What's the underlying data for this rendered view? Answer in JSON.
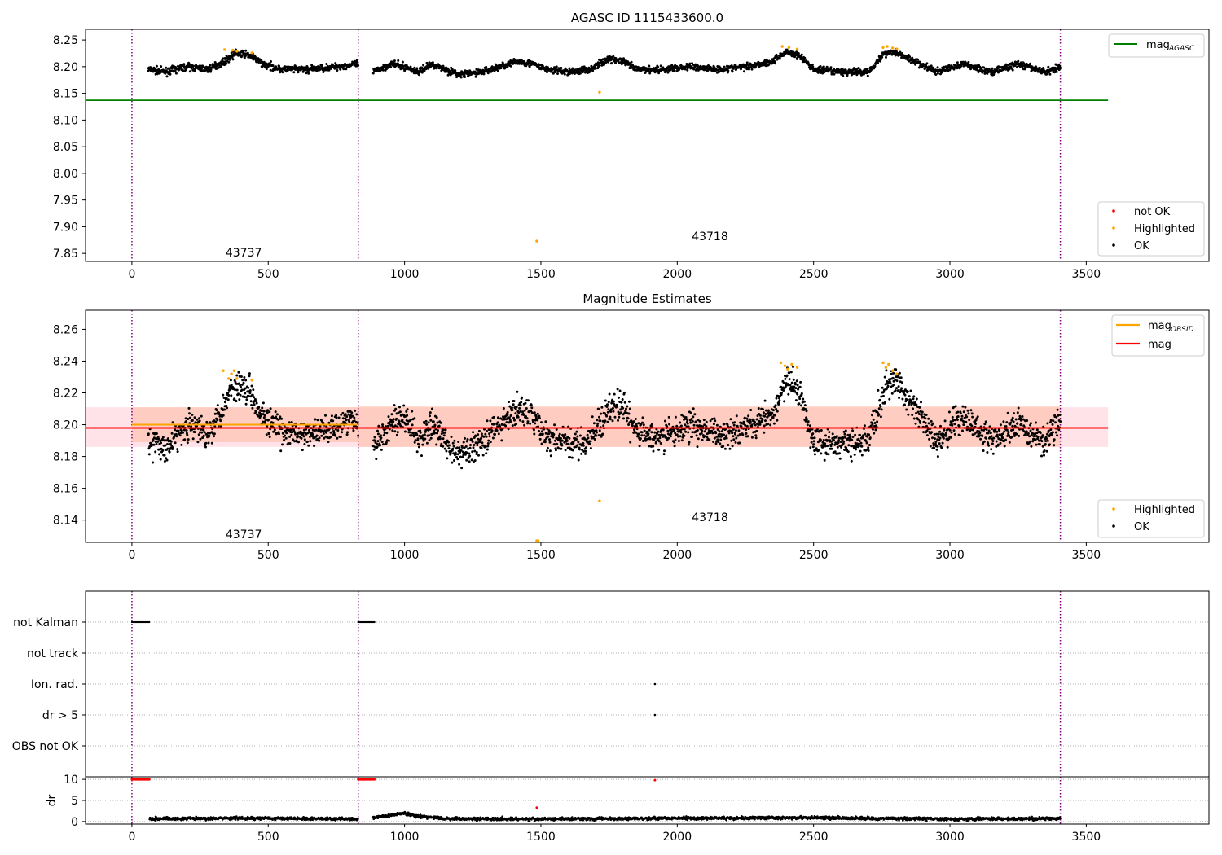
{
  "chart_data": [
    {
      "type": "scatter",
      "title": "AGASC ID 1115433600.0",
      "xlabel": "",
      "ylabel": "",
      "xlim": [
        -170,
        3950
      ],
      "ylim": [
        7.835,
        8.27
      ],
      "xticks": [
        0,
        500,
        1000,
        1500,
        2000,
        2500,
        3000,
        3500
      ],
      "xtick_labels": [
        "0",
        "500",
        "1000",
        "1500",
        "2000",
        "2500",
        "3000",
        "3500"
      ],
      "yticks": [
        7.85,
        7.9,
        7.95,
        8.0,
        8.05,
        8.1,
        8.15,
        8.2,
        8.25
      ],
      "ytick_labels": [
        "7.85",
        "7.90",
        "7.95",
        "8.00",
        "8.05",
        "8.10",
        "8.15",
        "8.20",
        "8.25"
      ],
      "grid": false,
      "observation_boundaries": [
        0,
        830,
        3405
      ],
      "obsid_labels": [
        {
          "text": "43737",
          "x": 410,
          "y": 7.852
        },
        {
          "text": "43718",
          "x": 2120,
          "y": 7.882
        }
      ],
      "reference_lines": [
        {
          "name": "mag",
          "subscript": "AGASC",
          "y": 8.137,
          "x": [
            -170,
            3580
          ],
          "color": "#008000"
        }
      ],
      "series": [
        {
          "name": "not OK",
          "color": "#ff0000",
          "points": []
        },
        {
          "name": "Highlighted",
          "color": "#ffa500",
          "points": [
            [
              340,
              8.232
            ],
            [
              370,
              8.231
            ],
            [
              385,
              8.229
            ],
            [
              440,
              8.226
            ],
            [
              1715,
              8.152
            ],
            [
              1485,
              7.873
            ],
            [
              2385,
              8.238
            ],
            [
              2410,
              8.236
            ],
            [
              2440,
              8.233
            ],
            [
              2755,
              8.236
            ],
            [
              2770,
              8.238
            ],
            [
              2790,
              8.235
            ],
            [
              2805,
              8.233
            ]
          ]
        },
        {
          "name": "OK",
          "color": "#000000",
          "profile": [
            [
              60,
              8.195
            ],
            [
              120,
              8.19
            ],
            [
              200,
              8.2
            ],
            [
              280,
              8.195
            ],
            [
              340,
              8.21
            ],
            [
              380,
              8.225
            ],
            [
              430,
              8.222
            ],
            [
              480,
              8.205
            ],
            [
              550,
              8.195
            ],
            [
              650,
              8.195
            ],
            [
              750,
              8.2
            ],
            [
              825,
              8.205
            ],
            [
              885,
              8.19
            ],
            [
              950,
              8.205
            ],
            [
              1000,
              8.2
            ],
            [
              1050,
              8.19
            ],
            [
              1100,
              8.205
            ],
            [
              1150,
              8.195
            ],
            [
              1200,
              8.185
            ],
            [
              1280,
              8.19
            ],
            [
              1350,
              8.2
            ],
            [
              1420,
              8.21
            ],
            [
              1470,
              8.205
            ],
            [
              1520,
              8.195
            ],
            [
              1600,
              8.19
            ],
            [
              1680,
              8.195
            ],
            [
              1750,
              8.215
            ],
            [
              1800,
              8.21
            ],
            [
              1850,
              8.195
            ],
            [
              1950,
              8.195
            ],
            [
              2050,
              8.2
            ],
            [
              2150,
              8.195
            ],
            [
              2250,
              8.2
            ],
            [
              2350,
              8.21
            ],
            [
              2400,
              8.228
            ],
            [
              2450,
              8.22
            ],
            [
              2500,
              8.195
            ],
            [
              2600,
              8.19
            ],
            [
              2700,
              8.19
            ],
            [
              2760,
              8.225
            ],
            [
              2800,
              8.228
            ],
            [
              2850,
              8.215
            ],
            [
              2950,
              8.19
            ],
            [
              3050,
              8.205
            ],
            [
              3150,
              8.19
            ],
            [
              3250,
              8.205
            ],
            [
              3350,
              8.19
            ],
            [
              3405,
              8.2
            ]
          ]
        }
      ],
      "legends": [
        {
          "placement": "top-right",
          "entries": [
            "mag_AGASC"
          ]
        },
        {
          "placement": "bottom-right",
          "entries": [
            "not OK",
            "Highlighted",
            "OK"
          ]
        }
      ]
    },
    {
      "type": "scatter",
      "title": "Magnitude Estimates",
      "xlabel": "",
      "ylabel": "",
      "xlim": [
        -170,
        3950
      ],
      "ylim": [
        8.126,
        8.272
      ],
      "xticks": [
        0,
        500,
        1000,
        1500,
        2000,
        2500,
        3000,
        3500
      ],
      "xtick_labels": [
        "0",
        "500",
        "1000",
        "1500",
        "2000",
        "2500",
        "3000",
        "3500"
      ],
      "yticks": [
        8.14,
        8.16,
        8.18,
        8.2,
        8.22,
        8.24,
        8.26
      ],
      "ytick_labels": [
        "8.14",
        "8.16",
        "8.18",
        "8.20",
        "8.22",
        "8.24",
        "8.26"
      ],
      "grid": false,
      "observation_boundaries": [
        0,
        830,
        3405
      ],
      "obsid_labels": [
        {
          "text": "43737",
          "x": 410,
          "y": 8.131
        },
        {
          "text": "43718",
          "x": 2120,
          "y": 8.142
        }
      ],
      "bands": [
        {
          "y": [
            8.186,
            8.211
          ],
          "x": [
            -170,
            3580
          ],
          "color": "#ffc0cb"
        },
        {
          "y": [
            8.189,
            8.211
          ],
          "x": [
            0,
            830
          ],
          "color": "#ffa07a"
        },
        {
          "y": [
            8.186,
            8.212
          ],
          "x": [
            830,
            3405
          ],
          "color": "#ffa07a"
        }
      ],
      "reference_lines": [
        {
          "name": "mag",
          "subscript": "OBSID",
          "y": 8.2,
          "x": [
            0,
            830
          ],
          "color": "#ffa500"
        },
        {
          "name": "mag",
          "subscript": "OBSID",
          "y": 8.198,
          "x": [
            830,
            3405
          ],
          "color": "#ffa500"
        },
        {
          "name": "mag",
          "subscript": "",
          "y": 8.198,
          "x": [
            -170,
            3580
          ],
          "color": "#ff0000"
        }
      ],
      "series": [
        {
          "name": "Highlighted",
          "color": "#ffa500",
          "points": [
            [
              335,
              8.234
            ],
            [
              355,
              8.229
            ],
            [
              365,
              8.232
            ],
            [
              375,
              8.234
            ],
            [
              385,
              8.229
            ],
            [
              440,
              8.228
            ],
            [
              1715,
              8.152
            ],
            [
              1485,
              8.127
            ],
            [
              1490,
              8.127
            ],
            [
              2380,
              8.239
            ],
            [
              2395,
              8.237
            ],
            [
              2405,
              8.235
            ],
            [
              2420,
              8.238
            ],
            [
              2440,
              8.236
            ],
            [
              2755,
              8.239
            ],
            [
              2765,
              8.236
            ],
            [
              2775,
              8.238
            ],
            [
              2790,
              8.234
            ],
            [
              2805,
              8.232
            ]
          ]
        },
        {
          "name": "OK",
          "color": "#000000",
          "profile": [
            [
              60,
              8.19
            ],
            [
              120,
              8.185
            ],
            [
              200,
              8.2
            ],
            [
              280,
              8.195
            ],
            [
              330,
              8.21
            ],
            [
              360,
              8.222
            ],
            [
              400,
              8.225
            ],
            [
              440,
              8.22
            ],
            [
              480,
              8.205
            ],
            [
              550,
              8.195
            ],
            [
              650,
              8.193
            ],
            [
              750,
              8.2
            ],
            [
              825,
              8.205
            ],
            [
              885,
              8.185
            ],
            [
              950,
              8.2
            ],
            [
              1000,
              8.205
            ],
            [
              1050,
              8.19
            ],
            [
              1100,
              8.2
            ],
            [
              1150,
              8.19
            ],
            [
              1200,
              8.18
            ],
            [
              1280,
              8.19
            ],
            [
              1350,
              8.2
            ],
            [
              1420,
              8.21
            ],
            [
              1470,
              8.205
            ],
            [
              1520,
              8.192
            ],
            [
              1600,
              8.188
            ],
            [
              1680,
              8.19
            ],
            [
              1750,
              8.21
            ],
            [
              1800,
              8.212
            ],
            [
              1850,
              8.195
            ],
            [
              1950,
              8.192
            ],
            [
              2050,
              8.2
            ],
            [
              2150,
              8.193
            ],
            [
              2250,
              8.2
            ],
            [
              2350,
              8.205
            ],
            [
              2400,
              8.228
            ],
            [
              2450,
              8.22
            ],
            [
              2500,
              8.19
            ],
            [
              2600,
              8.188
            ],
            [
              2700,
              8.19
            ],
            [
              2760,
              8.222
            ],
            [
              2800,
              8.228
            ],
            [
              2850,
              8.215
            ],
            [
              2950,
              8.19
            ],
            [
              3050,
              8.205
            ],
            [
              3150,
              8.19
            ],
            [
              3250,
              8.2
            ],
            [
              3350,
              8.19
            ],
            [
              3405,
              8.205
            ]
          ]
        }
      ],
      "legends": [
        {
          "placement": "top-right",
          "entries": [
            "mag_OBSID",
            "mag"
          ]
        },
        {
          "placement": "bottom-right",
          "entries": [
            "Highlighted",
            "OK"
          ]
        }
      ]
    },
    {
      "type": "scatter",
      "title": "",
      "xlabel": "",
      "ylabel": "",
      "xlim": [
        -170,
        3950
      ],
      "categories": [
        "not Kalman",
        "not track",
        "Ion. rad.",
        "dr > 5",
        "OBS not OK"
      ],
      "grid": true,
      "observation_boundaries": [
        0,
        830,
        3405
      ],
      "flags": [
        {
          "category": "not Kalman",
          "x_ranges": [
            [
              0,
              65
            ],
            [
              830,
              890
            ]
          ]
        },
        {
          "category": "not track",
          "x_ranges": []
        },
        {
          "category": "Ion. rad.",
          "x_points": [
            1918
          ]
        },
        {
          "category": "dr > 5",
          "x_points": [
            1918
          ]
        },
        {
          "category": "OBS not OK",
          "x_ranges": []
        }
      ]
    },
    {
      "type": "scatter",
      "title": "",
      "xlabel": "",
      "ylabel": "dr",
      "xlim": [
        -170,
        3950
      ],
      "ylim": [
        -0.6,
        10.6
      ],
      "xticks": [
        0,
        500,
        1000,
        1500,
        2000,
        2500,
        3000,
        3500
      ],
      "xtick_labels": [
        "0",
        "500",
        "1000",
        "1500",
        "2000",
        "2500",
        "3000",
        "3500"
      ],
      "yticks": [
        0,
        5,
        10
      ],
      "ytick_labels": [
        "0",
        "5",
        "10"
      ],
      "grid": true,
      "observation_boundaries": [
        0,
        830,
        3405
      ],
      "series": [
        {
          "name": "dr",
          "color": "#000000",
          "profile": [
            [
              65,
              0.7
            ],
            [
              500,
              0.8
            ],
            [
              830,
              0.6
            ],
            [
              885,
              0.9
            ],
            [
              950,
              1.5
            ],
            [
              1000,
              2.0
            ],
            [
              1050,
              1.2
            ],
            [
              1150,
              0.7
            ],
            [
              1500,
              0.6
            ],
            [
              2000,
              0.8
            ],
            [
              2500,
              0.9
            ],
            [
              3000,
              0.6
            ],
            [
              3405,
              0.7
            ]
          ]
        },
        {
          "name": "dr flagged",
          "color": "#ff0000",
          "x_ranges": [
            [
              0,
              65
            ],
            [
              830,
              890
            ]
          ],
          "y": 10,
          "points": [
            [
              1918,
              9.8
            ],
            [
              1485,
              3.3
            ]
          ]
        }
      ]
    }
  ]
}
